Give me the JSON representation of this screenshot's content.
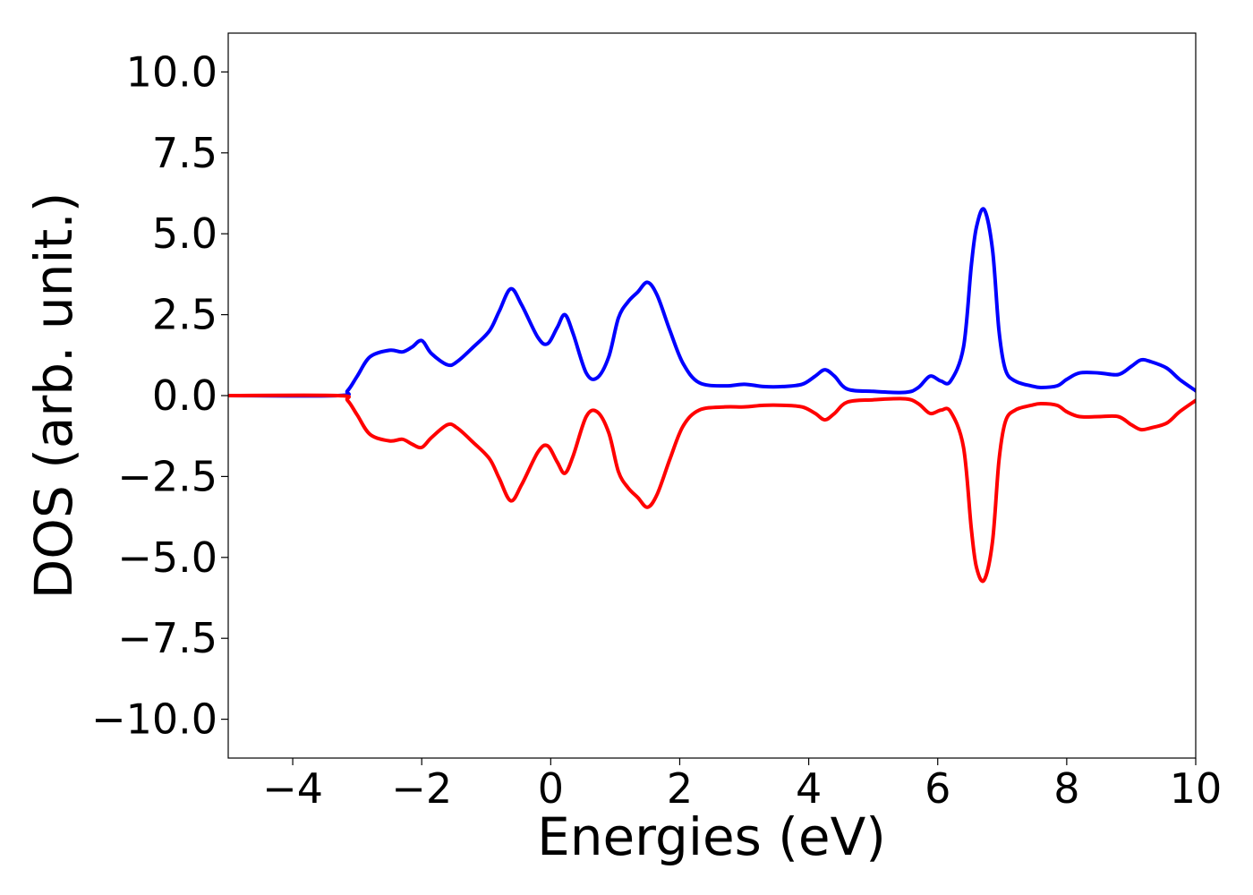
{
  "chart_data": {
    "type": "line",
    "title": "",
    "xlabel": "Energies (eV)",
    "ylabel": "DOS (arb. unit.)",
    "xlim": [
      -5,
      10
    ],
    "ylim": [
      -11.2,
      11.2
    ],
    "grid": false,
    "legend": "none",
    "x_ticks": [
      -4,
      -2,
      0,
      2,
      4,
      6,
      8,
      10
    ],
    "x_tick_labels": [
      "−4",
      "−2",
      "0",
      "2",
      "4",
      "6",
      "8",
      "10"
    ],
    "y_ticks": [
      10,
      7.5,
      5,
      2.5,
      0,
      -2.5,
      -5,
      -7.5,
      -10
    ],
    "y_tick_labels": [
      "10.0",
      "7.5",
      "5.0",
      "2.5",
      "0.0",
      "−2.5",
      "−5.0",
      "−7.5",
      "−10.0"
    ],
    "series": [
      {
        "color": "#0000ff",
        "x": [
          -5.0,
          -3.3,
          -3.15,
          -3.0,
          -2.8,
          -2.5,
          -2.3,
          -2.15,
          -2.0,
          -1.85,
          -1.6,
          -1.45,
          -1.2,
          -0.95,
          -0.8,
          -0.62,
          -0.45,
          -0.2,
          -0.05,
          0.1,
          0.22,
          0.35,
          0.55,
          0.72,
          0.9,
          1.05,
          1.2,
          1.35,
          1.5,
          1.65,
          1.85,
          2.05,
          2.3,
          2.7,
          3.0,
          3.3,
          3.6,
          3.9,
          4.1,
          4.25,
          4.4,
          4.6,
          5.0,
          5.5,
          5.7,
          5.88,
          6.05,
          6.2,
          6.4,
          6.52,
          6.6,
          6.72,
          6.85,
          6.95,
          7.05,
          7.2,
          7.45,
          7.6,
          7.85,
          8.0,
          8.2,
          8.5,
          8.8,
          9.0,
          9.15,
          9.3,
          9.55,
          9.75,
          10.0
        ],
        "y": [
          0.0,
          0.0,
          0.15,
          0.6,
          1.2,
          1.4,
          1.35,
          1.5,
          1.7,
          1.3,
          0.95,
          1.05,
          1.5,
          2.0,
          2.6,
          3.3,
          2.8,
          1.8,
          1.6,
          2.1,
          2.5,
          1.9,
          0.7,
          0.55,
          1.2,
          2.4,
          2.9,
          3.2,
          3.5,
          3.1,
          2.0,
          1.0,
          0.4,
          0.3,
          0.35,
          0.28,
          0.28,
          0.35,
          0.6,
          0.8,
          0.6,
          0.2,
          0.13,
          0.1,
          0.25,
          0.6,
          0.45,
          0.45,
          1.5,
          4.0,
          5.2,
          5.75,
          4.5,
          2.0,
          0.8,
          0.45,
          0.3,
          0.25,
          0.3,
          0.5,
          0.7,
          0.7,
          0.65,
          0.9,
          1.1,
          1.05,
          0.85,
          0.5,
          0.15
        ]
      },
      {
        "color": "#ff0000",
        "x": [
          -5.0,
          -3.3,
          -3.15,
          -3.0,
          -2.8,
          -2.5,
          -2.3,
          -2.15,
          -2.0,
          -1.85,
          -1.6,
          -1.45,
          -1.2,
          -0.95,
          -0.8,
          -0.62,
          -0.45,
          -0.2,
          -0.05,
          0.1,
          0.22,
          0.35,
          0.55,
          0.72,
          0.9,
          1.05,
          1.2,
          1.35,
          1.5,
          1.65,
          1.85,
          2.05,
          2.3,
          2.7,
          3.0,
          3.3,
          3.6,
          3.9,
          4.1,
          4.25,
          4.4,
          4.6,
          5.0,
          5.5,
          5.7,
          5.88,
          6.05,
          6.2,
          6.4,
          6.52,
          6.6,
          6.72,
          6.85,
          6.95,
          7.05,
          7.2,
          7.45,
          7.6,
          7.85,
          8.0,
          8.2,
          8.5,
          8.8,
          9.0,
          9.15,
          9.3,
          9.55,
          9.75,
          10.0
        ],
        "y": [
          0.0,
          0.0,
          -0.15,
          -0.6,
          -1.2,
          -1.4,
          -1.35,
          -1.5,
          -1.6,
          -1.3,
          -0.9,
          -1.0,
          -1.45,
          -1.95,
          -2.55,
          -3.25,
          -2.75,
          -1.75,
          -1.55,
          -2.05,
          -2.4,
          -1.85,
          -0.65,
          -0.5,
          -1.15,
          -2.35,
          -2.85,
          -3.15,
          -3.45,
          -3.05,
          -1.95,
          -0.95,
          -0.45,
          -0.35,
          -0.35,
          -0.3,
          -0.3,
          -0.35,
          -0.55,
          -0.75,
          -0.55,
          -0.2,
          -0.13,
          -0.1,
          -0.25,
          -0.55,
          -0.45,
          -0.5,
          -1.6,
          -4.1,
          -5.3,
          -5.7,
          -4.5,
          -2.0,
          -0.8,
          -0.45,
          -0.3,
          -0.25,
          -0.3,
          -0.5,
          -0.65,
          -0.65,
          -0.65,
          -0.9,
          -1.05,
          -1.0,
          -0.85,
          -0.5,
          -0.15
        ]
      }
    ]
  }
}
